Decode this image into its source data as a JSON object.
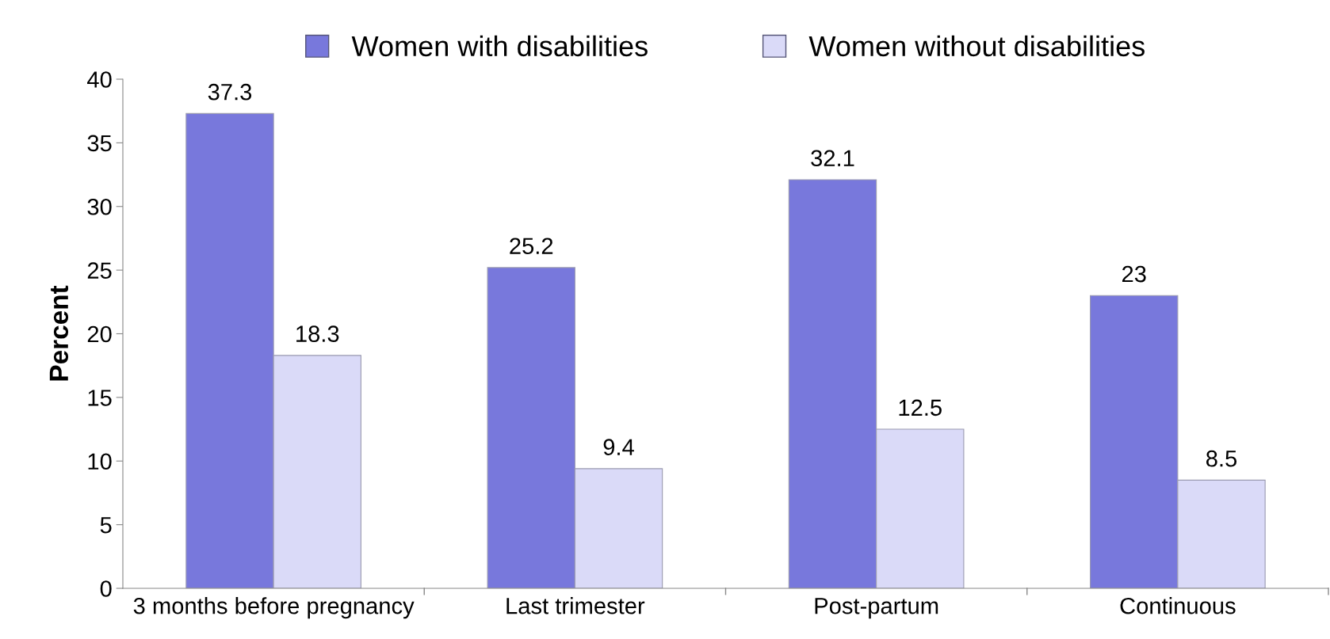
{
  "chart_data": {
    "type": "bar",
    "ylabel": "Percent",
    "categories": [
      "3 months before pregnancy",
      "Last trimester",
      "Post-partum",
      "Continuous"
    ],
    "series": [
      {
        "name": "Women with disabilities",
        "color": "#7878dc",
        "values": [
          37.3,
          25.2,
          32.1,
          23
        ]
      },
      {
        "name": "Women without disabilities",
        "color": "#dadaf8",
        "values": [
          18.3,
          9.4,
          12.5,
          8.5
        ]
      }
    ],
    "ylim": [
      0,
      40
    ],
    "yticks": [
      0,
      5,
      10,
      15,
      20,
      25,
      30,
      35,
      40
    ],
    "data_labels": true,
    "grid": false,
    "legend": "top"
  }
}
